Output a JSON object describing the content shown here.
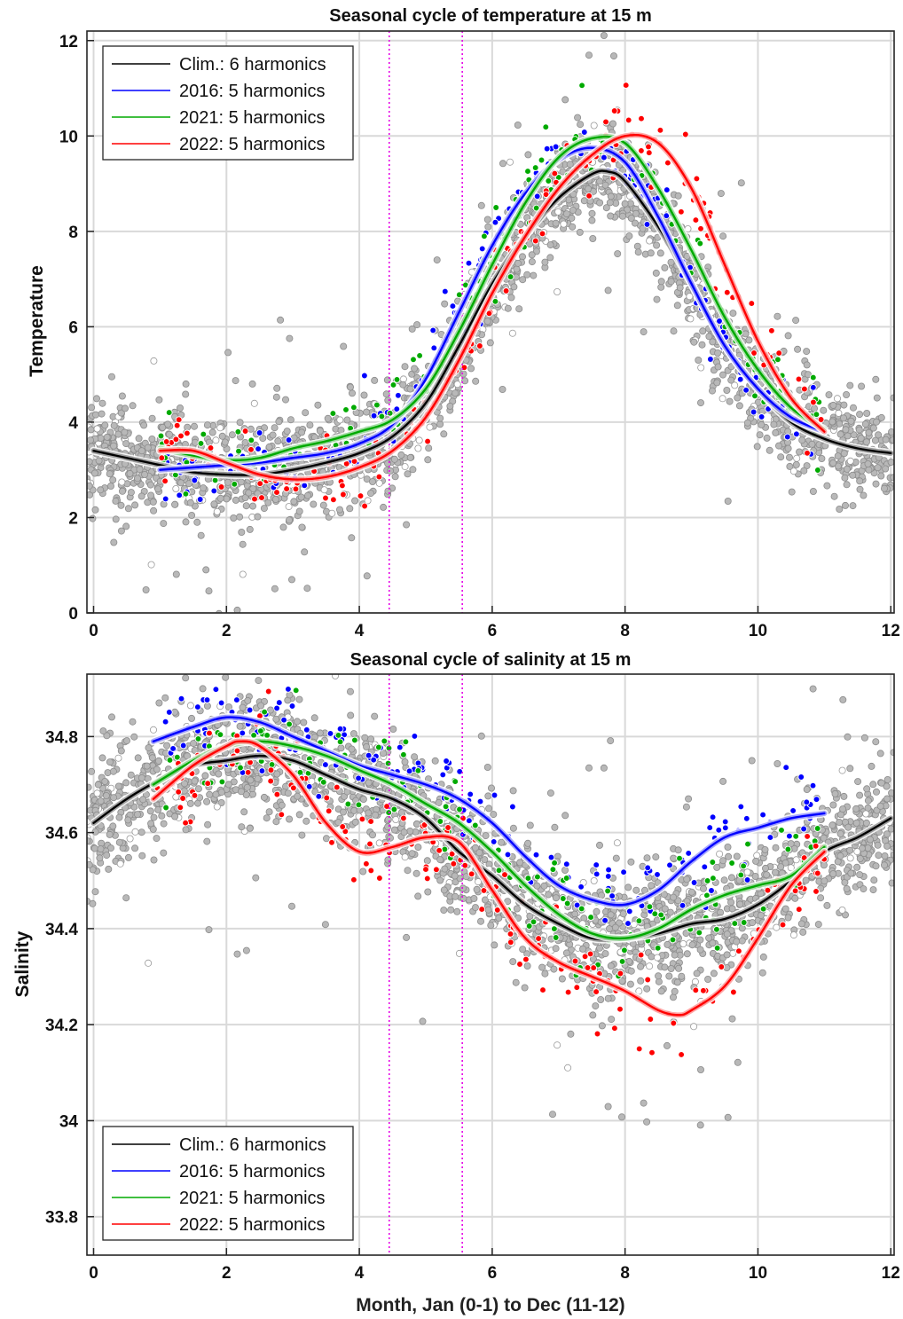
{
  "chart_data": [
    {
      "type": "line",
      "title": "Seasonal cycle of temperature at 15 m",
      "xlabel": "",
      "ylabel": "Temperature",
      "xlim": [
        -0.1,
        12.05
      ],
      "ylim": [
        0,
        12.2
      ],
      "xticks": [
        0,
        2,
        4,
        6,
        8,
        10,
        12
      ],
      "yticks": [
        0,
        2,
        4,
        6,
        8,
        10,
        12
      ],
      "grid": true,
      "legend_position": "top-left",
      "vlines": [
        4.45,
        5.55
      ],
      "series": [
        {
          "name": "Clim.: 6 harmonics",
          "color": "#000000",
          "x": [
            0,
            0.5,
            1,
            1.5,
            2,
            2.5,
            3,
            3.5,
            4,
            4.5,
            5,
            5.5,
            6,
            6.5,
            7,
            7.5,
            7.75,
            8,
            8.5,
            9,
            9.5,
            10,
            10.5,
            11,
            11.5,
            12
          ],
          "y": [
            3.4,
            3.25,
            3.1,
            2.95,
            2.9,
            2.9,
            3.0,
            3.15,
            3.35,
            3.7,
            4.4,
            5.6,
            6.9,
            7.9,
            8.7,
            9.2,
            9.25,
            9.05,
            8.1,
            6.9,
            5.6,
            4.7,
            4.0,
            3.65,
            3.45,
            3.35
          ]
        },
        {
          "name": "2016: 5 harmonics",
          "color": "#0000ff",
          "x": [
            1,
            1.5,
            2,
            2.5,
            3,
            3.5,
            4,
            4.5,
            5,
            5.5,
            6,
            6.5,
            7,
            7.5,
            8,
            8.5,
            9,
            9.5,
            10,
            10.5,
            11
          ],
          "y": [
            3.0,
            3.05,
            3.1,
            3.15,
            3.25,
            3.35,
            3.55,
            3.95,
            4.9,
            6.3,
            7.7,
            8.8,
            9.5,
            9.75,
            9.45,
            8.3,
            6.9,
            5.6,
            4.7,
            4.1,
            3.8
          ]
        },
        {
          "name": "2021: 5 harmonics",
          "color": "#00aa00",
          "x": [
            1,
            1.5,
            2,
            2.5,
            3,
            3.5,
            4,
            4.5,
            5,
            5.5,
            6,
            6.5,
            7,
            7.5,
            8,
            8.5,
            9,
            9.5,
            10,
            10.5,
            11
          ],
          "y": [
            3.45,
            3.3,
            3.2,
            3.25,
            3.45,
            3.6,
            3.8,
            4.05,
            4.7,
            5.9,
            7.3,
            8.6,
            9.55,
            9.95,
            9.85,
            8.9,
            7.6,
            6.2,
            5.1,
            4.3,
            3.85
          ]
        },
        {
          "name": "2022: 5 harmonics",
          "color": "#ff0000",
          "x": [
            1,
            1.5,
            2,
            2.5,
            3,
            3.5,
            4,
            4.5,
            5,
            5.5,
            6,
            6.5,
            7,
            7.5,
            8,
            8.5,
            9,
            9.5,
            10,
            10.5,
            11
          ],
          "y": [
            3.4,
            3.4,
            3.15,
            2.9,
            2.8,
            2.85,
            3.05,
            3.4,
            4.1,
            5.3,
            6.7,
            7.9,
            8.9,
            9.6,
            10.0,
            9.85,
            8.9,
            7.3,
            5.7,
            4.5,
            3.8
          ]
        }
      ]
    },
    {
      "type": "line",
      "title": "Seasonal cycle of salinity at 15 m",
      "xlabel": "Month, Jan (0-1) to Dec (11-12)",
      "ylabel": "Salinity",
      "xlim": [
        -0.1,
        12.05
      ],
      "ylim": [
        33.72,
        34.93
      ],
      "xticks": [
        0,
        2,
        4,
        6,
        8,
        10,
        12
      ],
      "yticks": [
        33.8,
        34,
        34.2,
        34.4,
        34.6,
        34.8
      ],
      "ytick_labels": [
        "33.8",
        "34",
        "34.2",
        "34.4",
        "34.6",
        "34.8"
      ],
      "grid": true,
      "legend_position": "bottom-left",
      "vlines": [
        4.45,
        5.55
      ],
      "series": [
        {
          "name": "Clim.: 6 harmonics",
          "color": "#000000",
          "x": [
            0,
            0.5,
            1,
            1.5,
            2,
            2.5,
            3,
            3.5,
            4,
            4.5,
            5,
            5.5,
            6,
            6.5,
            7,
            7.5,
            8,
            8.5,
            9,
            9.5,
            10,
            10.5,
            11,
            11.5,
            12
          ],
          "y": [
            34.62,
            34.67,
            34.71,
            34.74,
            34.75,
            34.76,
            34.75,
            34.72,
            34.69,
            34.67,
            34.63,
            34.56,
            34.51,
            34.45,
            34.41,
            34.38,
            34.38,
            34.39,
            34.41,
            34.42,
            34.45,
            34.5,
            34.56,
            34.59,
            34.63
          ]
        },
        {
          "name": "2016: 5 harmonics",
          "color": "#0000ff",
          "x": [
            0.9,
            1.5,
            2,
            2.5,
            3,
            3.5,
            4,
            4.5,
            5,
            5.5,
            6,
            6.5,
            7,
            7.5,
            8,
            8.5,
            9,
            9.5,
            10,
            10.5,
            11
          ],
          "y": [
            34.79,
            34.82,
            34.84,
            34.83,
            34.8,
            34.77,
            34.74,
            34.72,
            34.7,
            34.67,
            34.62,
            34.55,
            34.49,
            34.46,
            34.45,
            34.48,
            34.54,
            34.59,
            34.61,
            34.63,
            34.64
          ]
        },
        {
          "name": "2021: 5 harmonics",
          "color": "#00aa00",
          "x": [
            0.9,
            1.5,
            2,
            2.5,
            3,
            3.5,
            4,
            4.5,
            5,
            5.5,
            6,
            6.5,
            7,
            7.5,
            8,
            8.5,
            9,
            9.5,
            10,
            10.5,
            11
          ],
          "y": [
            34.7,
            34.75,
            34.78,
            34.79,
            34.78,
            34.76,
            34.73,
            34.7,
            34.66,
            34.62,
            34.56,
            34.49,
            34.43,
            34.39,
            34.38,
            34.4,
            34.44,
            34.47,
            34.49,
            34.51,
            34.57
          ]
        },
        {
          "name": "2022: 5 harmonics",
          "color": "#ff0000",
          "x": [
            0.9,
            1.5,
            2,
            2.2,
            2.5,
            3,
            3.5,
            4,
            4.5,
            5,
            5.5,
            6,
            6.5,
            7,
            7.5,
            8,
            8.5,
            8.8,
            9,
            9.5,
            10,
            10.5,
            11
          ],
          "y": [
            34.67,
            34.74,
            34.78,
            34.79,
            34.78,
            34.72,
            34.62,
            34.56,
            34.57,
            34.59,
            34.58,
            34.48,
            34.38,
            34.33,
            34.3,
            34.27,
            34.23,
            34.22,
            34.23,
            34.28,
            34.38,
            34.49,
            34.56
          ]
        }
      ]
    }
  ]
}
